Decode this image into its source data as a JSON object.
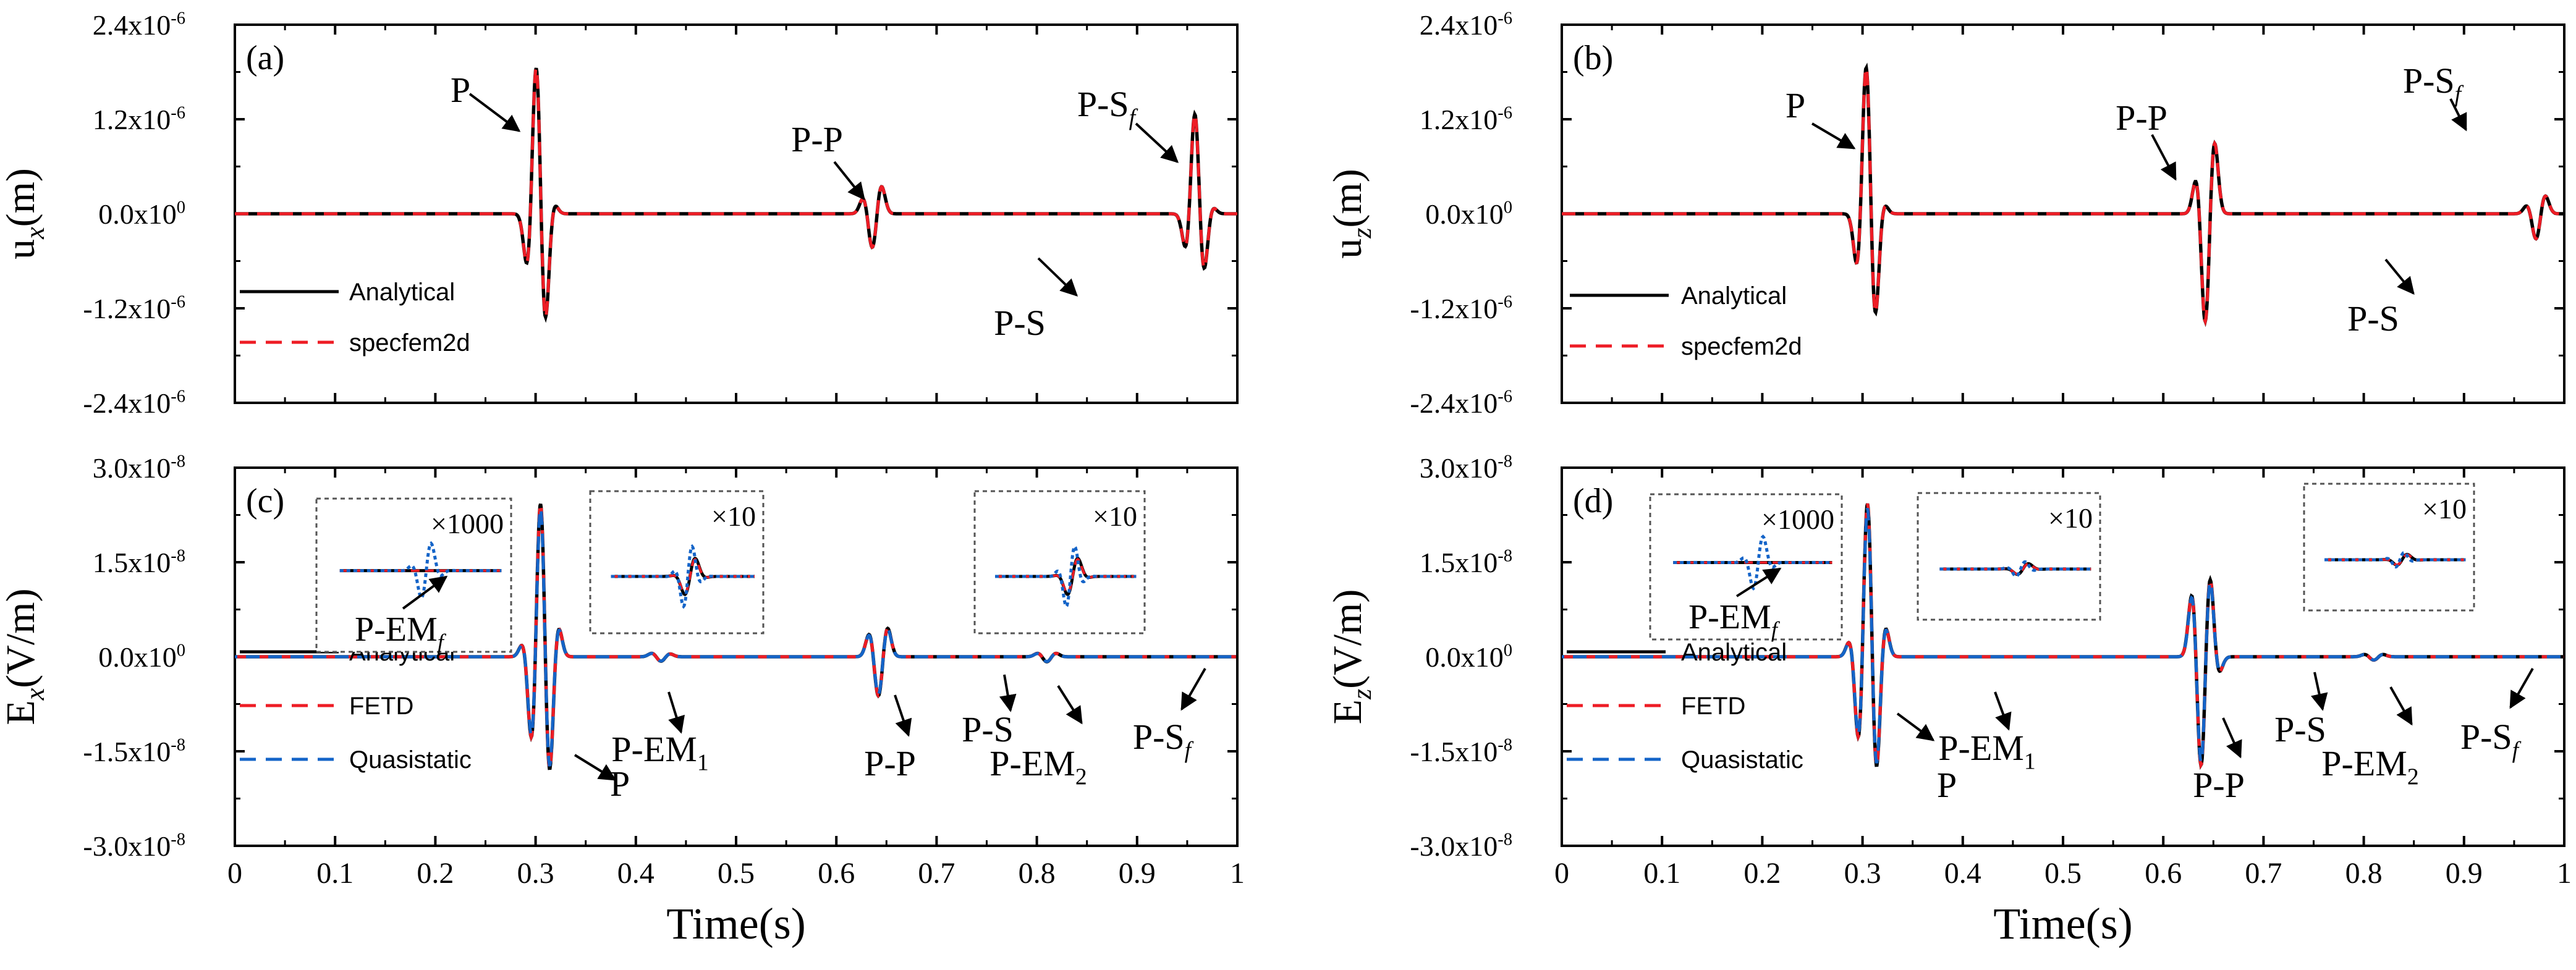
{
  "colors": {
    "analytical": "#000000",
    "numerical": "#ee1c25",
    "quasistatic": "#1464c8",
    "axis": "#000000",
    "inset_border": "#555555"
  },
  "chart_data": [
    {
      "id": "a",
      "type": "line",
      "panel_label": "(a)",
      "ylabel_main": "u",
      "ylabel_sub": "x",
      "ylabel_unit": "(m)",
      "xlabel": "",
      "xlim": [
        0,
        1
      ],
      "ylim": [
        -2.4e-06,
        2.4e-06
      ],
      "x_ticks": [
        0,
        0.1,
        0.2,
        0.3,
        0.4,
        0.5,
        0.6,
        0.7,
        0.8,
        0.9,
        1
      ],
      "x_tick_labels": [],
      "y_ticks": [
        -2.4e-06,
        -1.2e-06,
        0,
        1.2e-06,
        2.4e-06
      ],
      "y_tick_labels": [
        {
          "mant": "-2.4x10",
          "exp": "-6"
        },
        {
          "mant": "-1.2x10",
          "exp": "-6"
        },
        {
          "mant": "0.0x10",
          "exp": "0"
        },
        {
          "mant": "1.2x10",
          "exp": "-6"
        },
        {
          "mant": "2.4x10",
          "exp": "-6"
        }
      ],
      "series": [
        {
          "name": "Analytical",
          "style": "solid",
          "color_key": "analytical"
        },
        {
          "name": "specfem2d",
          "style": "dashed",
          "color_key": "numerical"
        }
      ],
      "wavelets": [
        {
          "t": 0.305,
          "amps": [
            -7.5e-07,
            2.05e-06,
            -1.48e-06,
            1.5e-07
          ]
        },
        {
          "t": 0.636,
          "amps": [
            2.2e-07,
            -4.8e-07,
            3.8e-07
          ]
        },
        {
          "t": 0.962,
          "amps": [
            -5e-07,
            1.38e-06,
            -8e-07,
            1e-07
          ]
        }
      ],
      "annotations": [
        {
          "text": "P",
          "sub": ""
        },
        {
          "text": "P-P",
          "sub": ""
        },
        {
          "text": "P-S",
          "sub": "f"
        },
        {
          "text": "P-S",
          "sub": ""
        }
      ]
    },
    {
      "id": "b",
      "type": "line",
      "panel_label": "(b)",
      "ylabel_main": "u",
      "ylabel_sub": "z",
      "ylabel_unit": "(m)",
      "xlabel": "",
      "xlim": [
        0,
        1
      ],
      "ylim": [
        -2.4e-06,
        2.4e-06
      ],
      "x_ticks": [
        0,
        0.1,
        0.2,
        0.3,
        0.4,
        0.5,
        0.6,
        0.7,
        0.8,
        0.9,
        1
      ],
      "x_tick_labels": [],
      "y_ticks": [
        -2.4e-06,
        -1.2e-06,
        0,
        1.2e-06,
        2.4e-06
      ],
      "y_tick_labels": [
        {
          "mant": "-2.4x10",
          "exp": "-6"
        },
        {
          "mant": "-1.2x10",
          "exp": "-6"
        },
        {
          "mant": "0.0x10",
          "exp": "0"
        },
        {
          "mant": "1.2x10",
          "exp": "-6"
        },
        {
          "mant": "2.4x10",
          "exp": "-6"
        }
      ],
      "series": [
        {
          "name": "Analytical",
          "style": "solid",
          "color_key": "analytical"
        },
        {
          "name": "specfem2d",
          "style": "dashed",
          "color_key": "numerical"
        }
      ],
      "wavelets": [
        {
          "t": 0.308,
          "amps": [
            -7.5e-07,
            2.05e-06,
            -1.42e-06,
            1.5e-07
          ]
        },
        {
          "t": 0.642,
          "amps": [
            5e-07,
            -1.5e-06,
            1e-06
          ]
        },
        {
          "t": 0.972,
          "amps": [
            1.2e-07,
            -3.5e-07,
            2.5e-07
          ]
        }
      ],
      "annotations": [
        {
          "text": "P",
          "sub": ""
        },
        {
          "text": "P-P",
          "sub": ""
        },
        {
          "text": "P-S",
          "sub": "f"
        },
        {
          "text": "P-S",
          "sub": ""
        }
      ]
    },
    {
      "id": "c",
      "type": "line",
      "panel_label": "(c)",
      "ylabel_main": "E",
      "ylabel_sub": "x",
      "ylabel_unit": "(V/m)",
      "xlabel": "Time(s)",
      "xlim": [
        0,
        1
      ],
      "ylim": [
        -3e-08,
        3e-08
      ],
      "x_ticks": [
        0,
        0.1,
        0.2,
        0.3,
        0.4,
        0.5,
        0.6,
        0.7,
        0.8,
        0.9,
        1
      ],
      "x_tick_labels": [
        "0",
        "0.1",
        "0.2",
        "0.3",
        "0.4",
        "0.5",
        "0.6",
        "0.7",
        "0.8",
        "0.9",
        "1"
      ],
      "y_ticks": [
        -3e-08,
        -1.5e-08,
        0,
        1.5e-08,
        3e-08
      ],
      "y_tick_labels": [
        {
          "mant": "-3.0x10",
          "exp": "-8"
        },
        {
          "mant": "-1.5x10",
          "exp": "-8"
        },
        {
          "mant": "0.0x10",
          "exp": "0"
        },
        {
          "mant": "1.5x10",
          "exp": "-8"
        },
        {
          "mant": "3.0x10",
          "exp": "-8"
        }
      ],
      "series": [
        {
          "name": "Analytical",
          "style": "solid",
          "color_key": "analytical"
        },
        {
          "name": "FETD",
          "style": "dashed",
          "color_key": "numerical"
        },
        {
          "name": "Quasistatic",
          "style": "dashed",
          "color_key": "quasistatic"
        }
      ],
      "wavelets": [
        {
          "t": 0.305,
          "amps": [
            2.5e-09,
            -1.5e-08,
            2.75e-08,
            -2.05e-08,
            5.5e-09
          ]
        },
        {
          "t": 0.642,
          "amps": [
            4e-09,
            -7e-09,
            5e-09
          ]
        },
        {
          "t": 0.425,
          "amps": [
            6e-10,
            -8e-10,
            5e-10
          ]
        },
        {
          "t": 0.81,
          "amps": [
            6e-10,
            -9e-10,
            6e-10
          ]
        }
      ],
      "insets": [
        {
          "factor": "×1000",
          "label": "P-EM",
          "label_sub": "f"
        },
        {
          "factor": "×10",
          "label": "",
          "label_sub": ""
        },
        {
          "factor": "×10",
          "label": "",
          "label_sub": ""
        }
      ],
      "annotations": [
        {
          "text": "P",
          "sub": ""
        },
        {
          "text": "P-EM",
          "sub": "1"
        },
        {
          "text": "P-P",
          "sub": ""
        },
        {
          "text": "P-S",
          "sub": ""
        },
        {
          "text": "P-EM",
          "sub": "2"
        },
        {
          "text": "P-S",
          "sub": "f"
        }
      ]
    },
    {
      "id": "d",
      "type": "line",
      "panel_label": "(d)",
      "ylabel_main": "E",
      "ylabel_sub": "z",
      "ylabel_unit": "(V/m)",
      "xlabel": "Time(s)",
      "xlim": [
        0,
        1
      ],
      "ylim": [
        -3e-08,
        3e-08
      ],
      "x_ticks": [
        0,
        0.1,
        0.2,
        0.3,
        0.4,
        0.5,
        0.6,
        0.7,
        0.8,
        0.9,
        1
      ],
      "x_tick_labels": [
        "0",
        "0.1",
        "0.2",
        "0.3",
        "0.4",
        "0.5",
        "0.6",
        "0.7",
        "0.8",
        "0.9",
        "1"
      ],
      "y_ticks": [
        -3e-08,
        -1.5e-08,
        0,
        1.5e-08,
        3e-08
      ],
      "y_tick_labels": [
        {
          "mant": "-3.0x10",
          "exp": "-8"
        },
        {
          "mant": "-1.5x10",
          "exp": "-8"
        },
        {
          "mant": "0.0x10",
          "exp": "0"
        },
        {
          "mant": "1.5x10",
          "exp": "-8"
        },
        {
          "mant": "3.0x10",
          "exp": "-8"
        }
      ],
      "series": [
        {
          "name": "Analytical",
          "style": "solid",
          "color_key": "analytical"
        },
        {
          "name": "FETD",
          "style": "dashed",
          "color_key": "numerical"
        },
        {
          "name": "Quasistatic",
          "style": "dashed",
          "color_key": "quasistatic"
        }
      ],
      "wavelets": [
        {
          "t": 0.305,
          "amps": [
            3e-09,
            -1.5e-08,
            2.75e-08,
            -2e-08,
            5.5e-09
          ]
        },
        {
          "t": 0.642,
          "amps": [
            1.1e-08,
            -1.95e-08,
            1.4e-08,
            -3e-09
          ]
        },
        {
          "t": 0.81,
          "amps": [
            4e-10,
            -6e-10,
            4e-10
          ]
        }
      ],
      "insets": [
        {
          "factor": "×1000",
          "label": "P-EM",
          "label_sub": "f"
        },
        {
          "factor": "×10",
          "label": "",
          "label_sub": ""
        },
        {
          "factor": "×10",
          "label": "",
          "label_sub": ""
        }
      ],
      "annotations": [
        {
          "text": "P",
          "sub": ""
        },
        {
          "text": "P-EM",
          "sub": "1"
        },
        {
          "text": "P-P",
          "sub": ""
        },
        {
          "text": "P-S",
          "sub": ""
        },
        {
          "text": "P-EM",
          "sub": "2"
        },
        {
          "text": "P-S",
          "sub": "f"
        }
      ]
    }
  ]
}
